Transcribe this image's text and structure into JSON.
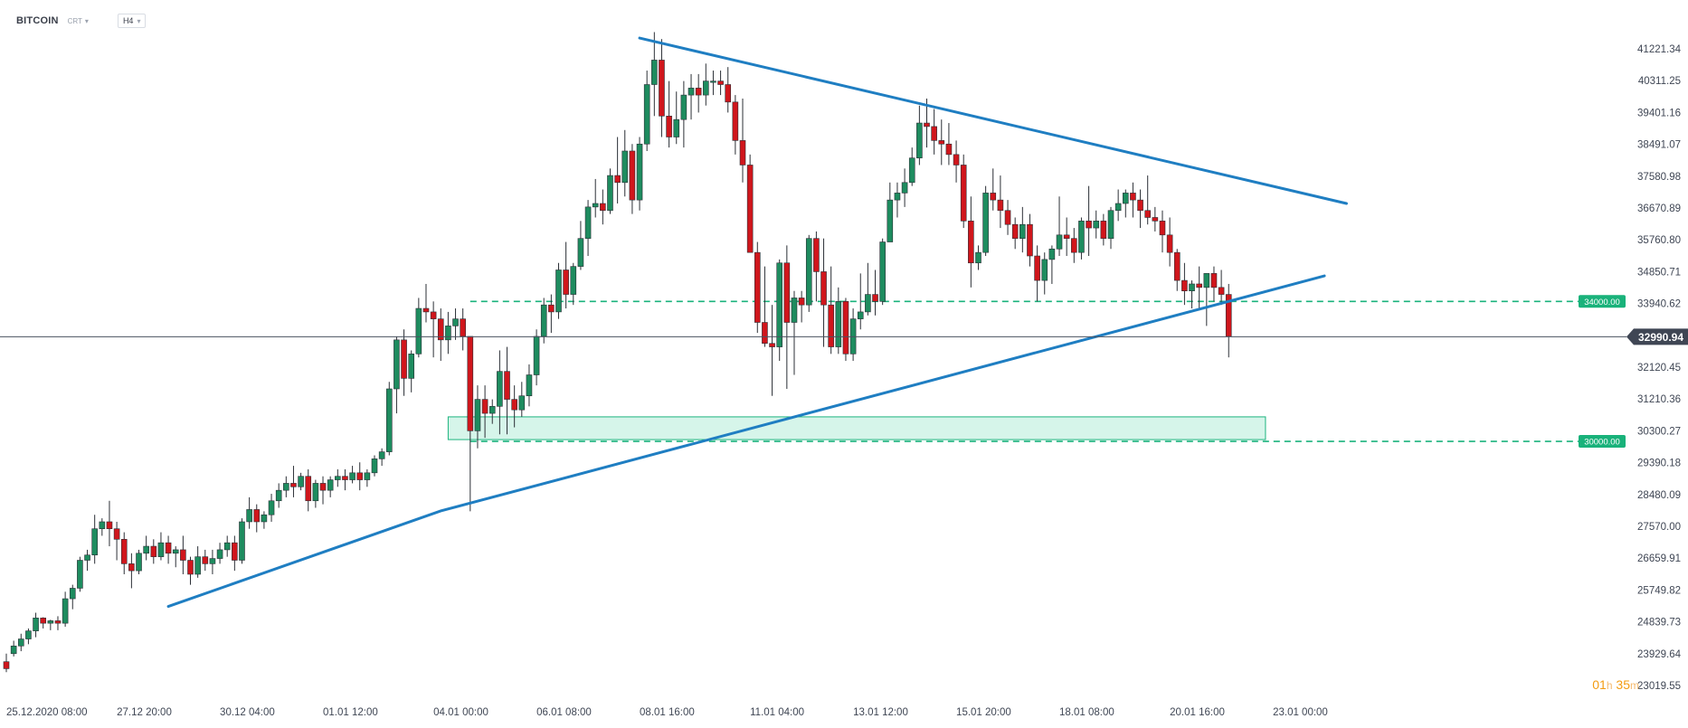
{
  "header": {
    "symbol": "BITCOIN",
    "subtype": "CRT",
    "timeframe": "H4"
  },
  "timer": {
    "hours": "01",
    "h_unit": "h",
    "minutes": "35",
    "m_unit": "m"
  },
  "colors": {
    "bull": "#1e8c5f",
    "bear": "#d0161c",
    "trendline": "#1f7ec2",
    "level_line": "#1bb37d",
    "level_badge": "#19b27a",
    "zone_fill": "#d6f5ea",
    "zone_border": "#1bb37d",
    "price_line": "#4a5260",
    "price_badge": "#3f4654"
  },
  "chart_data": {
    "type": "candlestick",
    "symbol": "BITCOIN",
    "timeframe": "H4",
    "y_ticks": [
      "41221.34",
      "40311.25",
      "39401.16",
      "38491.07",
      "37580.98",
      "36670.89",
      "35760.80",
      "34850.71",
      "33940.62",
      "32120.45",
      "31210.36",
      "30300.27",
      "29390.18",
      "28480.09",
      "27570.00",
      "26659.91",
      "25749.82",
      "24839.73",
      "23929.64",
      "23019.55"
    ],
    "x_tick_labels": [
      "25.12.2020  08:00",
      "27.12  20:00",
      "30.12  04:00",
      "01.01  12:00",
      "04.01  00:00",
      "06.01  08:00",
      "08.01  16:00",
      "11.01  04:00",
      "13.01  12:00",
      "15.01  20:00",
      "18.01  08:00",
      "20.01  16:00",
      "23.01  00:00"
    ],
    "x_tick_index": [
      0,
      15,
      29,
      43,
      58,
      72,
      86,
      101,
      115,
      129,
      143,
      158,
      172
    ],
    "ylim": [
      23019.55,
      41221.34
    ],
    "current_price": "32990.94",
    "levels": [
      {
        "price": 34000,
        "label": "34000.00"
      },
      {
        "price": 30000,
        "label": "30000.00"
      }
    ],
    "support_zone": {
      "from": 30050,
      "to": 30700,
      "start_index": 60,
      "end_index": 171
    },
    "trendlines": [
      {
        "name": "resistance",
        "points": [
          [
            86,
            41530
          ],
          [
            182,
            36800
          ]
        ]
      },
      {
        "name": "support",
        "points": [
          [
            22,
            25280
          ],
          [
            59,
            28010
          ],
          [
            179,
            34730
          ]
        ]
      }
    ],
    "candles": [
      [
        23700,
        23930,
        23500,
        23400
      ],
      [
        23930,
        24300,
        24150,
        23850
      ],
      [
        24150,
        24500,
        24350,
        24000
      ],
      [
        24350,
        24650,
        24580,
        24200
      ],
      [
        24580,
        25100,
        24950,
        24400
      ],
      [
        24950,
        24970,
        24800,
        24650
      ],
      [
        24800,
        24900,
        24870,
        24600
      ],
      [
        24870,
        25000,
        24800,
        24600
      ],
      [
        24800,
        25700,
        25500,
        24700
      ],
      [
        25500,
        25900,
        25800,
        25200
      ],
      [
        25800,
        26700,
        26600,
        25700
      ],
      [
        26600,
        26900,
        26750,
        26300
      ],
      [
        26750,
        27900,
        27500,
        26500
      ],
      [
        27500,
        27800,
        27700,
        27300
      ],
      [
        27700,
        28300,
        27500,
        27000
      ],
      [
        27500,
        27700,
        27200,
        26600
      ],
      [
        27200,
        27400,
        26500,
        26200
      ],
      [
        26500,
        26800,
        26300,
        25800
      ],
      [
        26300,
        26900,
        26800,
        26200
      ],
      [
        26800,
        27300,
        27000,
        26600
      ],
      [
        27000,
        27200,
        26700,
        26500
      ],
      [
        26700,
        27400,
        27100,
        26600
      ],
      [
        27100,
        27300,
        26800,
        26500
      ],
      [
        26800,
        27000,
        26900,
        26400
      ],
      [
        26900,
        27300,
        26600,
        26200
      ],
      [
        26600,
        26700,
        26200,
        25900
      ],
      [
        26200,
        27000,
        26700,
        26100
      ],
      [
        26700,
        26900,
        26500,
        26300
      ],
      [
        26500,
        26900,
        26650,
        26200
      ],
      [
        26650,
        27100,
        26900,
        26500
      ],
      [
        26900,
        27300,
        27100,
        26700
      ],
      [
        27100,
        27300,
        26600,
        26300
      ],
      [
        26600,
        27800,
        27700,
        26500
      ],
      [
        27700,
        28400,
        28050,
        27500
      ],
      [
        28050,
        28200,
        27700,
        27400
      ],
      [
        27700,
        28000,
        27900,
        27500
      ],
      [
        27900,
        28500,
        28300,
        27700
      ],
      [
        28300,
        28800,
        28600,
        28100
      ],
      [
        28600,
        29000,
        28800,
        28400
      ],
      [
        28800,
        29300,
        28700,
        28400
      ],
      [
        28700,
        29100,
        29000,
        28600
      ],
      [
        29000,
        29200,
        28300,
        28000
      ],
      [
        28300,
        28900,
        28800,
        28100
      ],
      [
        28800,
        29000,
        28600,
        28200
      ],
      [
        28600,
        29000,
        28900,
        28400
      ],
      [
        28900,
        29200,
        29000,
        28700
      ],
      [
        29000,
        29200,
        28900,
        28600
      ],
      [
        28900,
        29300,
        29100,
        28800
      ],
      [
        29100,
        29400,
        28900,
        28600
      ],
      [
        28900,
        29200,
        29100,
        28700
      ],
      [
        29100,
        29600,
        29500,
        29000
      ],
      [
        29500,
        29800,
        29700,
        29300
      ],
      [
        29700,
        31700,
        31500,
        29600
      ],
      [
        31500,
        33000,
        32900,
        30800
      ],
      [
        32900,
        33200,
        31800,
        31300
      ],
      [
        31800,
        32600,
        32500,
        31400
      ],
      [
        32500,
        34100,
        33800,
        32400
      ],
      [
        33800,
        34500,
        33700,
        33400
      ],
      [
        33700,
        34000,
        33500,
        32400
      ],
      [
        33500,
        33800,
        32900,
        32300
      ],
      [
        32900,
        33700,
        33300,
        32500
      ],
      [
        33300,
        33800,
        33500,
        32900
      ],
      [
        33500,
        33800,
        33000,
        32600
      ],
      [
        33000,
        32900,
        30300,
        28000
      ],
      [
        30300,
        31600,
        31200,
        29800
      ],
      [
        31200,
        31600,
        30800,
        30100
      ],
      [
        30800,
        31200,
        31000,
        30500
      ],
      [
        31000,
        32600,
        32000,
        30200
      ],
      [
        32000,
        32700,
        31200,
        30200
      ],
      [
        31200,
        31600,
        30900,
        30400
      ],
      [
        30900,
        31700,
        31300,
        30700
      ],
      [
        31300,
        32200,
        31900,
        31000
      ],
      [
        31900,
        33200,
        33000,
        31600
      ],
      [
        33000,
        34100,
        33900,
        32800
      ],
      [
        33900,
        34200,
        33700,
        33100
      ],
      [
        33700,
        35100,
        34900,
        33500
      ],
      [
        34900,
        35700,
        34200,
        33800
      ],
      [
        34200,
        35100,
        35000,
        33900
      ],
      [
        35000,
        36300,
        35800,
        34900
      ],
      [
        35800,
        36900,
        36700,
        35300
      ],
      [
        36700,
        37500,
        36800,
        36400
      ],
      [
        36800,
        37200,
        36600,
        36200
      ],
      [
        36600,
        37800,
        37600,
        36500
      ],
      [
        37600,
        38700,
        37400,
        36800
      ],
      [
        37400,
        38900,
        38300,
        37000
      ],
      [
        38300,
        38500,
        36900,
        36500
      ],
      [
        36900,
        38700,
        38500,
        36600
      ],
      [
        38500,
        40600,
        40200,
        38300
      ],
      [
        40200,
        41700,
        40900,
        39300
      ],
      [
        40900,
        41500,
        39300,
        38700
      ],
      [
        39300,
        40300,
        38700,
        38400
      ],
      [
        38700,
        40000,
        39200,
        38500
      ],
      [
        39200,
        40300,
        39900,
        38400
      ],
      [
        39900,
        40500,
        40100,
        39200
      ],
      [
        40100,
        40500,
        39900,
        39400
      ],
      [
        39900,
        40800,
        40300,
        39600
      ],
      [
        40300,
        40600,
        40300,
        39900
      ],
      [
        40300,
        40600,
        40200,
        39900
      ],
      [
        40200,
        40700,
        39700,
        39400
      ],
      [
        39700,
        39900,
        38600,
        38200
      ],
      [
        38600,
        39800,
        37900,
        37400
      ],
      [
        37900,
        38200,
        35400,
        36000
      ],
      [
        35400,
        35700,
        33400,
        33100
      ],
      [
        33400,
        35000,
        32800,
        32700
      ],
      [
        32800,
        33900,
        32700,
        31300
      ],
      [
        32700,
        35200,
        35100,
        32300
      ],
      [
        35100,
        35600,
        33400,
        31500
      ],
      [
        33400,
        34300,
        34100,
        31900
      ],
      [
        34100,
        34300,
        33900,
        33400
      ],
      [
        33900,
        35900,
        35800,
        33700
      ],
      [
        35800,
        36000,
        34850,
        34000
      ],
      [
        34850,
        35800,
        33900,
        32700
      ],
      [
        33900,
        35000,
        32700,
        32500
      ],
      [
        32700,
        34400,
        34000,
        32500
      ],
      [
        34000,
        34100,
        32500,
        32300
      ],
      [
        32500,
        33800,
        33500,
        32300
      ],
      [
        33500,
        34800,
        33700,
        33200
      ],
      [
        33700,
        35100,
        34200,
        33600
      ],
      [
        34200,
        34900,
        34000,
        33600
      ],
      [
        34000,
        35800,
        35700,
        33900
      ],
      [
        35700,
        37400,
        36900,
        36400
      ],
      [
        36900,
        37400,
        37100,
        36400
      ],
      [
        37100,
        37800,
        37400,
        36700
      ],
      [
        37400,
        38400,
        38100,
        37300
      ],
      [
        38100,
        39600,
        39100,
        37900
      ],
      [
        39100,
        39800,
        39000,
        38400
      ],
      [
        39000,
        39500,
        38600,
        38200
      ],
      [
        38600,
        39200,
        38500,
        37900
      ],
      [
        38500,
        39100,
        38200,
        37900
      ],
      [
        38200,
        38600,
        37900,
        37400
      ],
      [
        37900,
        38200,
        36300,
        36100
      ],
      [
        36300,
        37000,
        35100,
        34400
      ],
      [
        35100,
        35600,
        35400,
        34900
      ],
      [
        35400,
        37300,
        37100,
        35300
      ],
      [
        37100,
        37800,
        36900,
        36600
      ],
      [
        36900,
        37600,
        36600,
        36100
      ],
      [
        36600,
        36900,
        36200,
        35900
      ],
      [
        36200,
        36400,
        35800,
        35500
      ],
      [
        35800,
        36700,
        36200,
        35400
      ],
      [
        36200,
        36500,
        35300,
        35000
      ],
      [
        35300,
        35600,
        34600,
        34000
      ],
      [
        34600,
        35400,
        35200,
        34200
      ],
      [
        35200,
        35600,
        35500,
        34500
      ],
      [
        35500,
        37000,
        35900,
        35300
      ],
      [
        35900,
        36400,
        35800,
        35300
      ],
      [
        35800,
        36100,
        35400,
        35100
      ],
      [
        35400,
        36400,
        36300,
        35200
      ],
      [
        36300,
        37300,
        36100,
        35300
      ],
      [
        36100,
        36600,
        36300,
        35800
      ],
      [
        36300,
        36500,
        35800,
        35600
      ],
      [
        35800,
        36700,
        36600,
        35500
      ],
      [
        36600,
        37200,
        36800,
        36300
      ],
      [
        36800,
        37200,
        37100,
        36400
      ],
      [
        37100,
        37400,
        36900,
        36400
      ],
      [
        36900,
        37200,
        36600,
        36100
      ],
      [
        36600,
        37600,
        36400,
        36200
      ],
      [
        36400,
        36700,
        36300,
        36000
      ],
      [
        36300,
        36600,
        35900,
        35400
      ],
      [
        35900,
        36400,
        35400,
        35000
      ],
      [
        35400,
        35500,
        34600,
        34300
      ],
      [
        34600,
        35100,
        34300,
        33900
      ],
      [
        34300,
        34600,
        34500,
        33800
      ],
      [
        34500,
        35000,
        34400,
        33800
      ],
      [
        34400,
        34800,
        34800,
        33300
      ],
      [
        34800,
        35000,
        34400,
        34000
      ],
      [
        34400,
        34900,
        34200,
        33900
      ],
      [
        34200,
        34500,
        33000,
        32400
      ]
    ]
  }
}
